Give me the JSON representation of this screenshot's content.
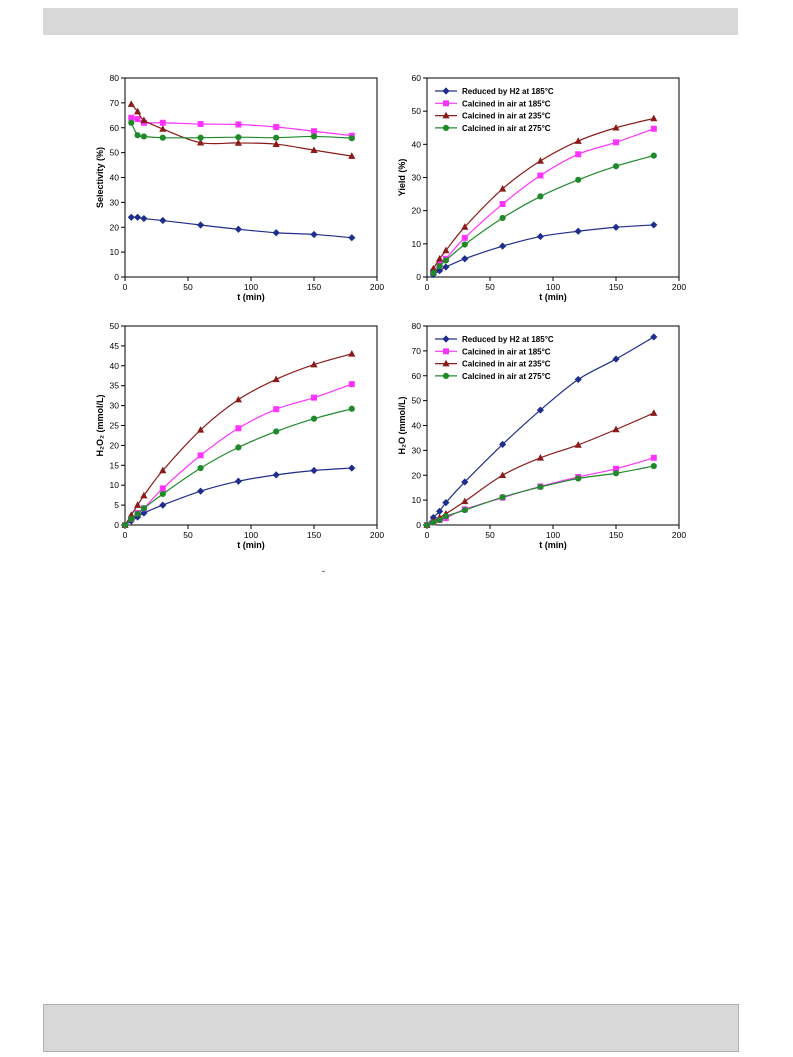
{
  "page": {
    "stray_mark": "-"
  },
  "series_styles": [
    {
      "color": "#1f2e8c",
      "marker": "diamond"
    },
    {
      "color": "#ff33ff",
      "marker": "square"
    },
    {
      "color": "#8b1a1a",
      "marker": "triangle"
    },
    {
      "color": "#1f8a2a",
      "marker": "circle"
    }
  ],
  "chart_data": [
    {
      "type": "line",
      "title": "",
      "xlabel": "t (min)",
      "ylabel": "Selectivity (%)",
      "xlim": [
        0,
        200
      ],
      "ylim": [
        0,
        80
      ],
      "xticks": [
        0,
        50,
        100,
        150,
        200
      ],
      "yticks": [
        0,
        10,
        20,
        30,
        40,
        50,
        60,
        70,
        80
      ],
      "legend": "none",
      "grid": false,
      "series": [
        {
          "name": "Reduced by H2 at 185°C",
          "x": [
            5,
            10,
            15,
            30,
            60,
            90,
            120,
            150,
            180
          ],
          "y": [
            24,
            24,
            23.5,
            22.7,
            20.9,
            19.2,
            17.8,
            17.1,
            15.8
          ]
        },
        {
          "name": "Calcined in air at 185°C",
          "x": [
            5,
            10,
            15,
            30,
            60,
            90,
            120,
            150,
            180
          ],
          "y": [
            64,
            63.5,
            62,
            62,
            61.5,
            61.3,
            60.3,
            58.6,
            56.8
          ]
        },
        {
          "name": "Calcined in air at 235°C",
          "x": [
            5,
            10,
            15,
            30,
            60,
            90,
            120,
            150,
            180
          ],
          "y": [
            69.5,
            66.5,
            63,
            59.5,
            54,
            53.9,
            53.4,
            51,
            48.6
          ]
        },
        {
          "name": "Calcined in air at 275°C",
          "x": [
            5,
            10,
            15,
            30,
            60,
            90,
            120,
            150,
            180
          ],
          "y": [
            62,
            57,
            56.5,
            56,
            56,
            56.2,
            56,
            56.5,
            55.8
          ]
        }
      ]
    },
    {
      "type": "line",
      "title": "",
      "xlabel": "t (min)",
      "ylabel": "Yield (%)",
      "xlim": [
        0,
        200
      ],
      "ylim": [
        0,
        60
      ],
      "xticks": [
        0,
        50,
        100,
        150,
        200
      ],
      "yticks": [
        0,
        10,
        20,
        30,
        40,
        50,
        60
      ],
      "legend": "top-left",
      "grid": false,
      "series": [
        {
          "name": "Reduced by H2 at 185°C",
          "x": [
            5,
            10,
            15,
            30,
            60,
            90,
            120,
            150,
            180
          ],
          "y": [
            0.7,
            1.9,
            3,
            5.5,
            9.3,
            12.2,
            13.8,
            15,
            15.7
          ]
        },
        {
          "name": "Calcined in air at 185°C",
          "x": [
            5,
            10,
            15,
            30,
            60,
            90,
            120,
            150,
            180
          ],
          "y": [
            1.6,
            4,
            5.5,
            11.8,
            22,
            30.6,
            37,
            40.6,
            44.7
          ]
        },
        {
          "name": "Calcined in air at 235°C",
          "x": [
            5,
            10,
            15,
            30,
            60,
            90,
            120,
            150,
            180
          ],
          "y": [
            2.5,
            5.5,
            8,
            15.1,
            26.6,
            35,
            41,
            45,
            47.8
          ]
        },
        {
          "name": "Calcined in air at 275°C",
          "x": [
            5,
            10,
            15,
            30,
            60,
            90,
            120,
            150,
            180
          ],
          "y": [
            1.2,
            3.3,
            5,
            9.8,
            17.8,
            24.3,
            29.3,
            33.4,
            36.6
          ]
        }
      ]
    },
    {
      "type": "line",
      "title": "",
      "xlabel": "t (min)",
      "ylabel": "H₂O₂ (mmol/L)",
      "xlim": [
        0,
        200
      ],
      "ylim": [
        0,
        50
      ],
      "xticks": [
        0,
        50,
        100,
        150,
        200
      ],
      "yticks": [
        0,
        5,
        10,
        15,
        20,
        25,
        30,
        35,
        40,
        45,
        50
      ],
      "legend": "none",
      "grid": false,
      "series": [
        {
          "name": "Reduced by H2 at 185°C",
          "x": [
            0,
            5,
            10,
            15,
            30,
            60,
            90,
            120,
            150,
            180
          ],
          "y": [
            0,
            1,
            2,
            3,
            5,
            8.5,
            11,
            12.6,
            13.7,
            14.3
          ]
        },
        {
          "name": "Calcined in air at 185°C",
          "x": [
            0,
            5,
            10,
            15,
            30,
            60,
            90,
            120,
            150,
            180
          ],
          "y": [
            0,
            1.5,
            3,
            4.2,
            9.2,
            17.5,
            24.3,
            29.1,
            32,
            35.4
          ]
        },
        {
          "name": "Calcined in air at 235°C",
          "x": [
            0,
            5,
            10,
            15,
            30,
            60,
            90,
            120,
            150,
            180
          ],
          "y": [
            0,
            2.5,
            5,
            7.4,
            13.7,
            23.9,
            31.5,
            36.6,
            40.3,
            43
          ]
        },
        {
          "name": "Calcined in air at 275°C",
          "x": [
            0,
            5,
            10,
            15,
            30,
            60,
            90,
            120,
            150,
            180
          ],
          "y": [
            0,
            1.5,
            2.8,
            4.2,
            7.8,
            14.3,
            19.5,
            23.5,
            26.7,
            29.2
          ]
        }
      ]
    },
    {
      "type": "line",
      "title": "",
      "xlabel": "t (min)",
      "ylabel": "H₂O (mmol/L)",
      "xlim": [
        0,
        200
      ],
      "ylim": [
        0,
        80
      ],
      "xticks": [
        0,
        50,
        100,
        150,
        200
      ],
      "yticks": [
        0,
        10,
        20,
        30,
        40,
        50,
        60,
        70,
        80
      ],
      "legend": "top-left",
      "grid": false,
      "series": [
        {
          "name": "Reduced by H2 at 185°C",
          "x": [
            0,
            5,
            10,
            15,
            30,
            60,
            90,
            120,
            150,
            180
          ],
          "y": [
            0,
            3,
            5.5,
            9,
            17.3,
            32.4,
            46.2,
            58.5,
            66.7,
            75.6
          ]
        },
        {
          "name": "Calcined in air at 185°C",
          "x": [
            0,
            5,
            10,
            15,
            30,
            60,
            90,
            120,
            150,
            180
          ],
          "y": [
            0,
            1,
            2,
            2.8,
            6.3,
            11,
            15.5,
            19.3,
            22.6,
            27
          ]
        },
        {
          "name": "Calcined in air at 235°C",
          "x": [
            0,
            5,
            10,
            15,
            30,
            60,
            90,
            120,
            150,
            180
          ],
          "y": [
            0,
            1.5,
            3,
            4.5,
            9.5,
            20,
            27,
            32.2,
            38.4,
            45
          ]
        },
        {
          "name": "Calcined in air at 275°C",
          "x": [
            0,
            5,
            10,
            15,
            30,
            60,
            90,
            120,
            150,
            180
          ],
          "y": [
            0,
            1,
            2,
            3.5,
            6,
            11.2,
            15.3,
            18.7,
            20.8,
            23.7
          ]
        }
      ]
    }
  ]
}
